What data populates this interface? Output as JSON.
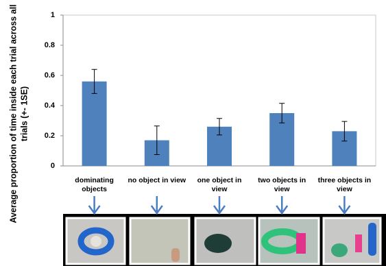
{
  "chart_data": {
    "type": "bar",
    "y_label": "Average proportion of time inside each trial across all trials (+- 1SE)",
    "categories": [
      "dominating objects",
      "no object in view",
      "one object in view",
      "two objects in view",
      "three objects in view"
    ],
    "values": [
      0.56,
      0.17,
      0.26,
      0.35,
      0.23
    ],
    "errors": [
      0.08,
      0.095,
      0.055,
      0.065,
      0.065
    ],
    "color": "#4f81bd",
    "ylim": [
      0,
      1
    ],
    "yticks": [
      0,
      0.2,
      0.4,
      0.6,
      0.8,
      1
    ],
    "grid": false
  }
}
